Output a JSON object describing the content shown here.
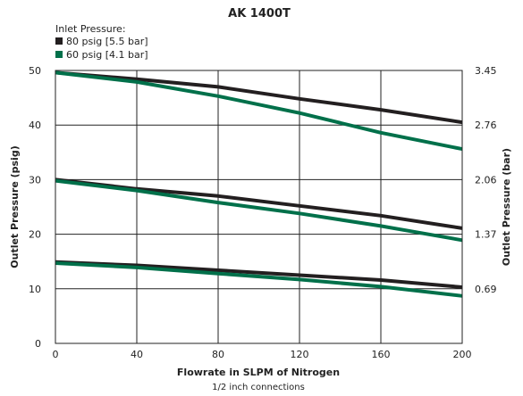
{
  "chart_data": {
    "type": "line",
    "title": "AK 1400T",
    "legend": {
      "heading": "Inlet Pressure:",
      "placement": "top-left",
      "entries": [
        {
          "label": "80 psig [5.5 bar]",
          "color": "#231f20"
        },
        {
          "label": "60 psig [4.1 bar]",
          "color": "#00704a"
        }
      ]
    },
    "xlabel": "Flowrate in SLPM of Nitrogen",
    "subtitle": "1/2 inch connections",
    "ylabel": "Outlet Pressure (psig)",
    "ylabel_right": "Outlet Pressure (bar)",
    "xlim": [
      0,
      200
    ],
    "ylim": [
      0,
      50
    ],
    "x_ticks": [
      "0",
      "40",
      "80",
      "120",
      "160",
      "200"
    ],
    "x_tick_values": [
      0,
      40,
      80,
      120,
      160,
      200
    ],
    "y_ticks": [
      "0",
      "10",
      "20",
      "30",
      "40",
      "50"
    ],
    "y_tick_values": [
      0,
      10,
      20,
      30,
      40,
      50
    ],
    "y_right_ticks": [
      "0.69",
      "1.37",
      "2.06",
      "2.76",
      "3.45"
    ],
    "y_right_tick_values": [
      10,
      20,
      30,
      40,
      50
    ],
    "grid": true,
    "series": [
      {
        "legend_index": 0,
        "color": "#231f20",
        "x": [
          0,
          40,
          80,
          120,
          160,
          200
        ],
        "y": [
          49.6,
          48.4,
          47.0,
          44.8,
          42.8,
          40.5
        ]
      },
      {
        "legend_index": 1,
        "color": "#00704a",
        "x": [
          0,
          40,
          80,
          120,
          160,
          200
        ],
        "y": [
          49.6,
          47.9,
          45.3,
          42.2,
          38.6,
          35.6
        ]
      },
      {
        "legend_index": 0,
        "color": "#231f20",
        "x": [
          0,
          40,
          80,
          120,
          160,
          200
        ],
        "y": [
          30.0,
          28.3,
          27.0,
          25.2,
          23.4,
          21.1
        ]
      },
      {
        "legend_index": 1,
        "color": "#00704a",
        "x": [
          0,
          40,
          80,
          120,
          160,
          200
        ],
        "y": [
          29.8,
          28.0,
          25.8,
          23.8,
          21.5,
          18.9
        ]
      },
      {
        "legend_index": 0,
        "color": "#231f20",
        "x": [
          0,
          40,
          80,
          120,
          160,
          200
        ],
        "y": [
          14.9,
          14.3,
          13.4,
          12.5,
          11.6,
          10.3
        ]
      },
      {
        "legend_index": 1,
        "color": "#00704a",
        "x": [
          0,
          40,
          80,
          120,
          160,
          200
        ],
        "y": [
          14.7,
          13.9,
          12.8,
          11.7,
          10.4,
          8.7
        ]
      }
    ]
  }
}
